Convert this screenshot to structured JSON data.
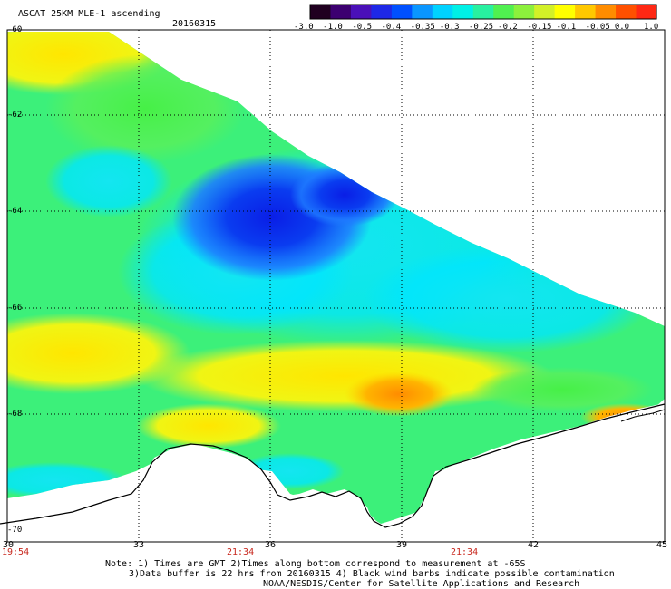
{
  "header": {
    "title": "ASCAT 25KM MLE-1 ascending",
    "date": "20160315"
  },
  "colorbar": {
    "colors": [
      "#200020",
      "#3c0070",
      "#4a10b8",
      "#1e28e6",
      "#0050ff",
      "#0a96ff",
      "#00d2ff",
      "#00f0e6",
      "#28f0a0",
      "#50f050",
      "#8cf03c",
      "#d2f028",
      "#ffff00",
      "#ffc800",
      "#ff8c00",
      "#ff5000",
      "#ff2814"
    ],
    "labels": [
      "-3.0",
      "-1.0",
      "-0.5",
      "-0.4",
      "-0.35",
      "-0.3",
      "-0.25",
      "-0.2",
      "-0.15",
      "-0.1",
      "-0.05",
      "0.0",
      "1.0"
    ]
  },
  "axes": {
    "lat_labels": [
      "-60",
      "-62",
      "-64",
      "-66",
      "-68",
      "-70"
    ],
    "lon_labels": [
      "30",
      "33",
      "36",
      "39",
      "42",
      "45"
    ]
  },
  "times": [
    "19:54",
    "21:34",
    "21:34"
  ],
  "notes": [
    "Note: 1) Times are GMT 2)Times along bottom correspond to measurement at -65S",
    "3)Data buffer is 22 hrs from 20160315 4) Black wind barbs indicate possible contamination",
    "NOAA/NESDIS/Center for Satellite Applications and Research"
  ]
}
